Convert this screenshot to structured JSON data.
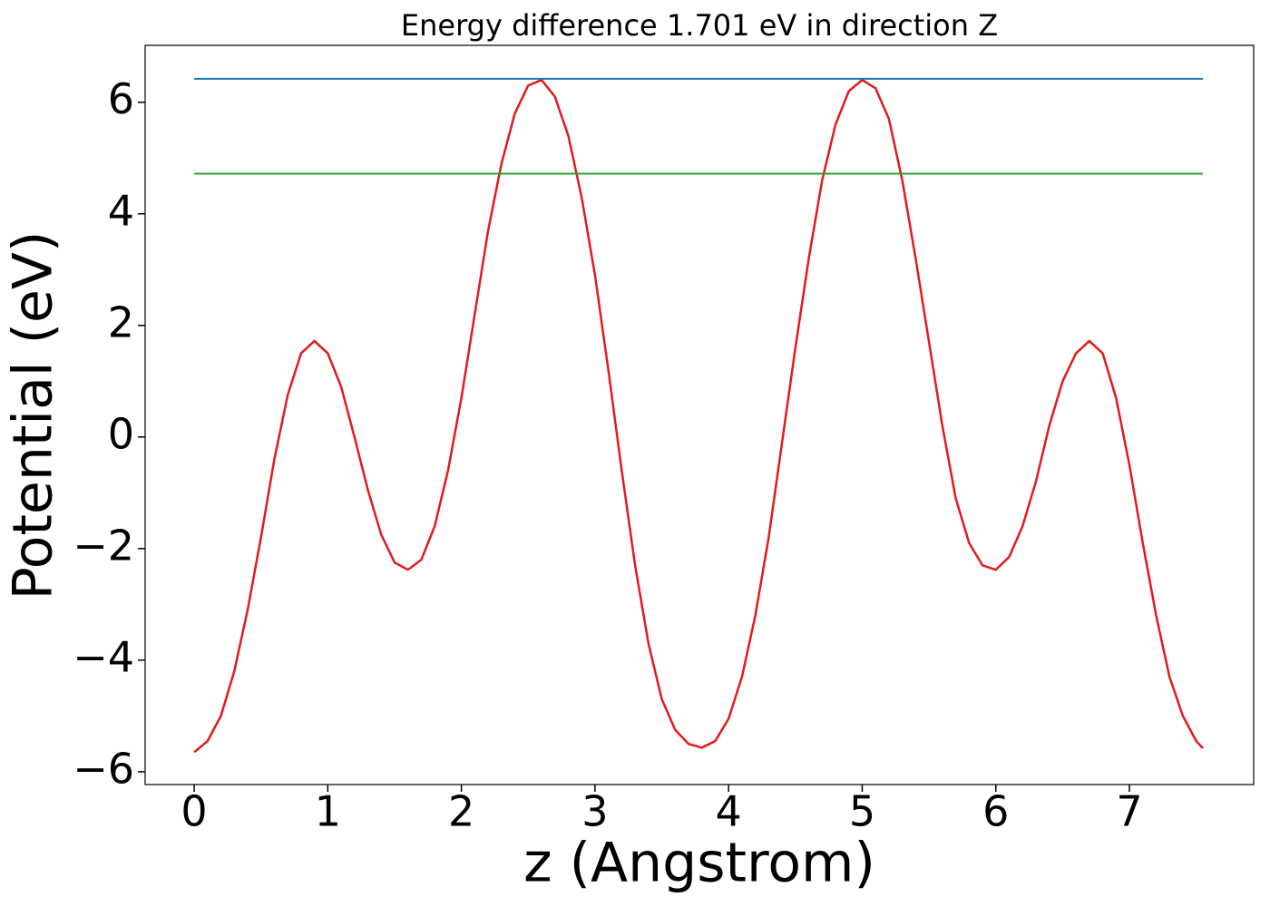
{
  "chart_data": {
    "type": "line",
    "title": "Energy difference 1.701 eV in direction Z",
    "xlabel": "z (Angstrom)",
    "ylabel": "Potential (eV)",
    "xlim": [
      -0.367,
      7.93
    ],
    "ylim": [
      -6.23,
      7.02
    ],
    "xticks": [
      0,
      1,
      2,
      3,
      4,
      5,
      6,
      7
    ],
    "yticks": [
      {
        "value": -6,
        "label": "−6"
      },
      {
        "value": -4,
        "label": "−4"
      },
      {
        "value": -2,
        "label": "−2"
      },
      0,
      2,
      4,
      6
    ],
    "grid": false,
    "series": [
      {
        "color": "#e31a1c",
        "x": [
          0,
          0.1,
          0.2,
          0.3,
          0.4,
          0.5,
          0.6,
          0.7,
          0.8,
          0.9,
          1.0,
          1.1,
          1.2,
          1.3,
          1.4,
          1.5,
          1.6,
          1.7,
          1.8,
          1.9,
          2.0,
          2.1,
          2.2,
          2.3,
          2.4,
          2.5,
          2.6,
          2.7,
          2.8,
          2.9,
          3.0,
          3.1,
          3.2,
          3.3,
          3.4,
          3.5,
          3.6,
          3.7,
          3.8,
          3.9,
          4.0,
          4.1,
          4.2,
          4.3,
          4.4,
          4.5,
          4.6,
          4.7,
          4.8,
          4.9,
          5.0,
          5.1,
          5.2,
          5.3,
          5.4,
          5.5,
          5.6,
          5.7,
          5.8,
          5.9,
          6.0,
          6.1,
          6.2,
          6.3,
          6.4,
          6.5,
          6.6,
          6.7,
          6.8,
          6.9,
          7.0,
          7.1,
          7.2,
          7.3,
          7.4,
          7.5,
          7.55
        ],
        "values": [
          -5.65,
          -5.45,
          -5.0,
          -4.2,
          -3.1,
          -1.8,
          -0.4,
          0.75,
          1.5,
          1.72,
          1.5,
          0.9,
          0.0,
          -0.95,
          -1.75,
          -2.25,
          -2.38,
          -2.2,
          -1.6,
          -0.6,
          0.7,
          2.2,
          3.7,
          4.9,
          5.8,
          6.3,
          6.4,
          6.1,
          5.4,
          4.3,
          2.9,
          1.2,
          -0.6,
          -2.3,
          -3.7,
          -4.7,
          -5.25,
          -5.5,
          -5.57,
          -5.45,
          -5.05,
          -4.3,
          -3.2,
          -1.8,
          -0.1,
          1.6,
          3.2,
          4.6,
          5.6,
          6.2,
          6.4,
          6.25,
          5.7,
          4.6,
          3.2,
          1.7,
          0.2,
          -1.1,
          -1.9,
          -2.3,
          -2.38,
          -2.15,
          -1.6,
          -0.8,
          0.2,
          1.0,
          1.5,
          1.72,
          1.5,
          0.7,
          -0.5,
          -1.9,
          -3.2,
          -4.3,
          -5.0,
          -5.45,
          -5.58
        ]
      },
      {
        "color": "#1f77b4",
        "x": [
          0,
          7.55
        ],
        "values": [
          6.42,
          6.42
        ]
      },
      {
        "color": "#2ca02c",
        "x": [
          0,
          7.55
        ],
        "values": [
          4.72,
          4.72
        ]
      }
    ]
  }
}
